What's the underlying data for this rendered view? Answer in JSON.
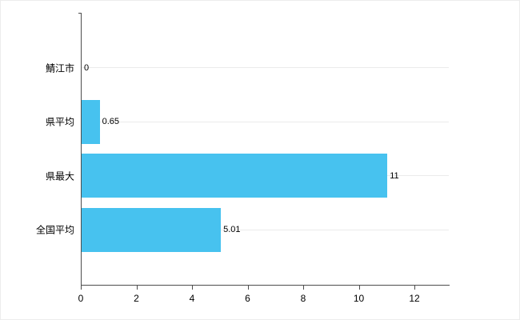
{
  "chart_data": {
    "type": "bar",
    "orientation": "horizontal",
    "title": "",
    "xlabel": "",
    "ylabel": "",
    "categories": [
      "鯖江市",
      "県平均",
      "県最大",
      "全国平均"
    ],
    "values": [
      0,
      0.65,
      11,
      5.01
    ],
    "value_labels": [
      "0",
      "0.65",
      "11",
      "5.01"
    ],
    "x_ticks": [
      "0",
      "2",
      "4",
      "6",
      "8",
      "10",
      "12"
    ],
    "x_tick_values": [
      0,
      2,
      4,
      6,
      8,
      10,
      12
    ],
    "xlim": [
      0,
      13.24
    ],
    "grid": "light horizontal line per category",
    "legend": "none",
    "bar_color": "#47c2ef",
    "axis_color": "#4d4d4d",
    "gridline_color": "#ebebeb",
    "text_color": "#000000",
    "background_color": "#ffffff"
  }
}
